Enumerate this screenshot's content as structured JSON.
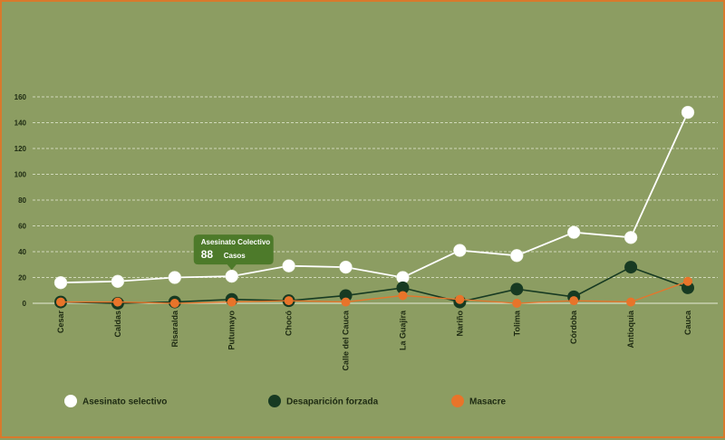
{
  "chart_data": {
    "type": "line",
    "categories": [
      "Cesar",
      "Caldas",
      "Risaralda",
      "Putumayo",
      "Chocó",
      "Calle del Cauca",
      "La Guajira",
      "Nariño",
      "Tolima",
      "Córdoba",
      "Antioquia",
      "Cauca"
    ],
    "series": [
      {
        "name": "Asesinato selectivo",
        "color": "#ffffff",
        "values": [
          16,
          17,
          20,
          21,
          29,
          28,
          20,
          41,
          37,
          55,
          51,
          148
        ]
      },
      {
        "name": "Desaparición forzada",
        "color": "#173a22",
        "values": [
          1,
          0,
          1,
          3,
          2,
          6,
          12,
          1,
          11,
          5,
          28,
          12
        ]
      },
      {
        "name": "Masacre",
        "color": "#e8742a",
        "values": [
          1,
          1,
          0,
          1,
          2,
          1,
          6,
          3,
          0,
          2,
          1,
          17
        ]
      }
    ],
    "y_ticks": [
      "0",
      "20",
      "40",
      "60",
      "80",
      "100",
      "120",
      "140",
      "160"
    ],
    "ylim": [
      0,
      160
    ],
    "grid": true,
    "legend_position": "bottom",
    "tooltip": {
      "title": "Asesinato Colectivo",
      "value": "88",
      "unit": "Casos",
      "anchor_category": "Putumayo"
    }
  }
}
